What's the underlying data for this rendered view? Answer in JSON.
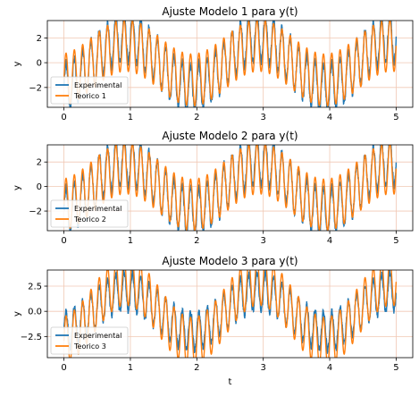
{
  "figure": {
    "background": "#ffffff",
    "grid_color": "#f0c8b4",
    "colors": {
      "experimental": "#1f77b4",
      "teorico": "#ff7f0e"
    }
  },
  "chart_data": [
    {
      "type": "line",
      "title": "Ajuste Modelo 1 para y(t)",
      "xlabel": "",
      "ylabel": "y",
      "xlim": [
        -0.25,
        5.25
      ],
      "ylim": [
        -3.6,
        3.4
      ],
      "xticks": [
        0,
        1,
        2,
        3,
        4,
        5
      ],
      "xtick_labels": [
        "0",
        "1",
        "2",
        "3",
        "4",
        "5"
      ],
      "yticks": [
        -2,
        0,
        2
      ],
      "ytick_labels": [
        "−2",
        "0",
        "2"
      ],
      "grid": true,
      "legend_position": "lower-left",
      "series": [
        {
          "name": "Experimental",
          "color": "#1f77b4",
          "x_range": [
            0,
            5
          ],
          "signal": {
            "slow_amp": 1.0,
            "slow_freq": 0.5,
            "slow_phase": -1.35,
            "fast_amp": 1.9,
            "fast_freq": 8.0,
            "noise_amp": 0.35
          }
        },
        {
          "name": "Teorico 1",
          "color": "#ff7f0e",
          "x_range": [
            0,
            5
          ],
          "signal": {
            "slow_amp": 0.7,
            "slow_freq": 0.5,
            "slow_phase": -1.35,
            "fast_amp": 2.1,
            "fast_freq": 8.0,
            "noise_amp": 0.0
          }
        }
      ]
    },
    {
      "type": "line",
      "title": "Ajuste Modelo 2 para y(t)",
      "xlabel": "",
      "ylabel": "y",
      "xlim": [
        -0.25,
        5.25
      ],
      "ylim": [
        -3.6,
        3.4
      ],
      "xticks": [
        0,
        1,
        2,
        3,
        4,
        5
      ],
      "xtick_labels": [
        "0",
        "1",
        "2",
        "3",
        "4",
        "5"
      ],
      "yticks": [
        -2,
        0,
        2
      ],
      "ytick_labels": [
        "−2",
        "0",
        "2"
      ],
      "grid": true,
      "legend_position": "lower-left",
      "series": [
        {
          "name": "Experimental",
          "color": "#1f77b4",
          "x_range": [
            0,
            5
          ],
          "signal": {
            "slow_amp": 1.0,
            "slow_freq": 0.5,
            "slow_phase": -1.35,
            "fast_amp": 1.9,
            "fast_freq": 8.0,
            "noise_amp": 0.35
          }
        },
        {
          "name": "Teorico 2",
          "color": "#ff7f0e",
          "x_range": [
            0,
            5
          ],
          "signal": {
            "slow_amp": 0.75,
            "slow_freq": 0.5,
            "slow_phase": -1.35,
            "fast_amp": 2.1,
            "fast_freq": 8.0,
            "noise_amp": 0.0
          }
        }
      ]
    },
    {
      "type": "line",
      "title": "Ajuste Modelo 3 para y(t)",
      "xlabel": "t",
      "ylabel": "y",
      "xlim": [
        -0.25,
        5.25
      ],
      "ylim": [
        -4.6,
        4.1
      ],
      "xticks": [
        0,
        1,
        2,
        3,
        4,
        5
      ],
      "xtick_labels": [
        "0",
        "1",
        "2",
        "3",
        "4",
        "5"
      ],
      "yticks": [
        -2.5,
        0,
        2.5
      ],
      "ytick_labels": [
        "−2.5",
        "0.0",
        "2.5"
      ],
      "grid": true,
      "legend_position": "lower-left",
      "series": [
        {
          "name": "Experimental",
          "color": "#1f77b4",
          "x_range": [
            0,
            5
          ],
          "signal": {
            "slow_amp": 1.0,
            "slow_freq": 0.5,
            "slow_phase": -1.35,
            "fast_amp": 1.9,
            "fast_freq": 8.0,
            "noise_amp": 0.35
          }
        },
        {
          "name": "Teorico 3",
          "color": "#ff7f0e",
          "x_range": [
            0,
            5
          ],
          "signal": {
            "slow_amp": 1.5,
            "slow_freq": 0.5,
            "slow_phase": -1.35,
            "fast_amp": 2.4,
            "fast_freq": 8.0,
            "noise_amp": 0.0
          }
        }
      ]
    }
  ]
}
